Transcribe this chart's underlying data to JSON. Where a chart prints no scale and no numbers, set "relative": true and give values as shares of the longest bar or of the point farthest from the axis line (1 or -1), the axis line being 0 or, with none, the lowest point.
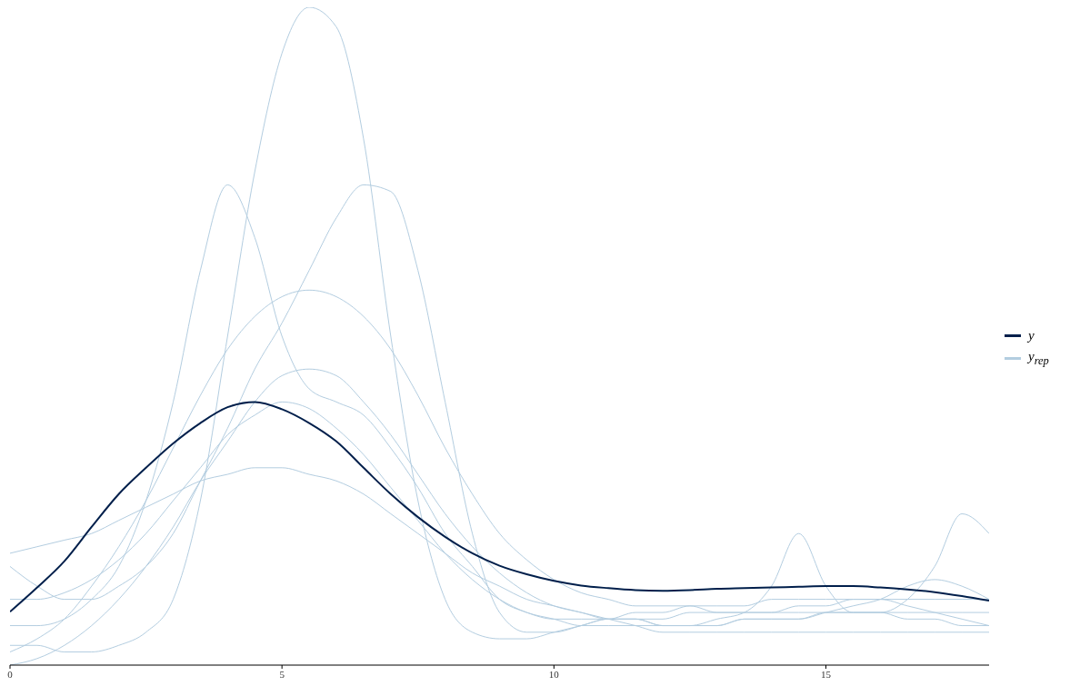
{
  "chart_data": {
    "type": "line",
    "relative": true,
    "legend": "right",
    "tick_labels": "x",
    "grid": false,
    "x": [
      0,
      0.5,
      1,
      1.5,
      2,
      2.5,
      3,
      3.5,
      4,
      4.5,
      5,
      5.5,
      6,
      6.5,
      7,
      7.5,
      8,
      8.5,
      9,
      9.5,
      10,
      10.5,
      11,
      11.5,
      12,
      12.5,
      13,
      13.5,
      14,
      14.5,
      15,
      15.5,
      16,
      16.5,
      17,
      17.5,
      18
    ],
    "xlim": [
      0,
      18
    ],
    "xticks": [
      0,
      5,
      10,
      15
    ],
    "series": [
      {
        "name": "y$_{rep}$",
        "color": "#b3cde0",
        "values": [
          0.03,
          0.03,
          0.02,
          0.02,
          0.03,
          0.05,
          0.1,
          0.25,
          0.5,
          0.75,
          0.93,
          1.0,
          0.97,
          0.8,
          0.5,
          0.25,
          0.1,
          0.05,
          0.04,
          0.04,
          0.05,
          0.06,
          0.07,
          0.07,
          0.07,
          0.08,
          0.08,
          0.08,
          0.08,
          0.08,
          0.08,
          0.08,
          0.08,
          0.08,
          0.08,
          0.08,
          0.08
        ]
      },
      {
        "color": "#b3cde0",
        "values": [
          0.06,
          0.06,
          0.07,
          0.1,
          0.15,
          0.25,
          0.4,
          0.6,
          0.73,
          0.65,
          0.5,
          0.42,
          0.4,
          0.38,
          0.33,
          0.27,
          0.2,
          0.15,
          0.1,
          0.08,
          0.07,
          0.07,
          0.07,
          0.08,
          0.08,
          0.09,
          0.09,
          0.09,
          0.1,
          0.1,
          0.1,
          0.1,
          0.1,
          0.1,
          0.1,
          0.1,
          0.1
        ]
      },
      {
        "color": "#b3cde0",
        "values": [
          0.15,
          0.12,
          0.1,
          0.1,
          0.12,
          0.15,
          0.2,
          0.28,
          0.36,
          0.45,
          0.52,
          0.6,
          0.68,
          0.73,
          0.72,
          0.6,
          0.4,
          0.2,
          0.08,
          0.05,
          0.05,
          0.06,
          0.07,
          0.07,
          0.06,
          0.06,
          0.06,
          0.07,
          0.07,
          0.07,
          0.08,
          0.09,
          0.1,
          0.12,
          0.13,
          0.12,
          0.1
        ]
      },
      {
        "color": "#b3cde0",
        "values": [
          0.02,
          0.04,
          0.07,
          0.12,
          0.18,
          0.25,
          0.33,
          0.41,
          0.48,
          0.53,
          0.56,
          0.57,
          0.56,
          0.53,
          0.48,
          0.41,
          0.33,
          0.26,
          0.2,
          0.16,
          0.13,
          0.11,
          0.1,
          0.09,
          0.09,
          0.09,
          0.08,
          0.08,
          0.08,
          0.09,
          0.09,
          0.1,
          0.1,
          0.09,
          0.08,
          0.07,
          0.06
        ]
      },
      {
        "color": "#b3cde0",
        "values": [
          0.17,
          0.18,
          0.19,
          0.2,
          0.22,
          0.24,
          0.26,
          0.28,
          0.29,
          0.3,
          0.3,
          0.29,
          0.28,
          0.26,
          0.23,
          0.2,
          0.17,
          0.14,
          0.12,
          0.1,
          0.09,
          0.08,
          0.07,
          0.06,
          0.05,
          0.05,
          0.05,
          0.05,
          0.05,
          0.05,
          0.05,
          0.05,
          0.05,
          0.05,
          0.05,
          0.05,
          0.05
        ]
      },
      {
        "color": "#b3cde0",
        "values": [
          0.0,
          0.01,
          0.03,
          0.06,
          0.1,
          0.15,
          0.21,
          0.28,
          0.34,
          0.4,
          0.44,
          0.45,
          0.44,
          0.4,
          0.35,
          0.29,
          0.23,
          0.18,
          0.14,
          0.11,
          0.09,
          0.08,
          0.07,
          0.07,
          0.06,
          0.06,
          0.06,
          0.07,
          0.07,
          0.07,
          0.08,
          0.08,
          0.08,
          0.07,
          0.07,
          0.06,
          0.06
        ]
      },
      {
        "color": "#b3cde0",
        "values": [
          0.1,
          0.1,
          0.11,
          0.13,
          0.16,
          0.2,
          0.25,
          0.3,
          0.35,
          0.38,
          0.4,
          0.39,
          0.36,
          0.32,
          0.27,
          0.22,
          0.17,
          0.13,
          0.1,
          0.08,
          0.07,
          0.06,
          0.06,
          0.06,
          0.06,
          0.06,
          0.07,
          0.08,
          0.12,
          0.2,
          0.12,
          0.08,
          0.08,
          0.1,
          0.15,
          0.23,
          0.2
        ]
      },
      {
        "name": "y",
        "color": "#011f4b",
        "values": [
          0.081,
          0.118,
          0.158,
          0.21,
          0.26,
          0.3,
          0.337,
          0.368,
          0.392,
          0.4,
          0.389,
          0.368,
          0.34,
          0.3,
          0.26,
          0.225,
          0.195,
          0.17,
          0.151,
          0.138,
          0.128,
          0.121,
          0.117,
          0.114,
          0.113,
          0.114,
          0.116,
          0.117,
          0.118,
          0.119,
          0.12,
          0.12,
          0.118,
          0.115,
          0.111,
          0.105,
          0.098
        ]
      }
    ]
  }
}
